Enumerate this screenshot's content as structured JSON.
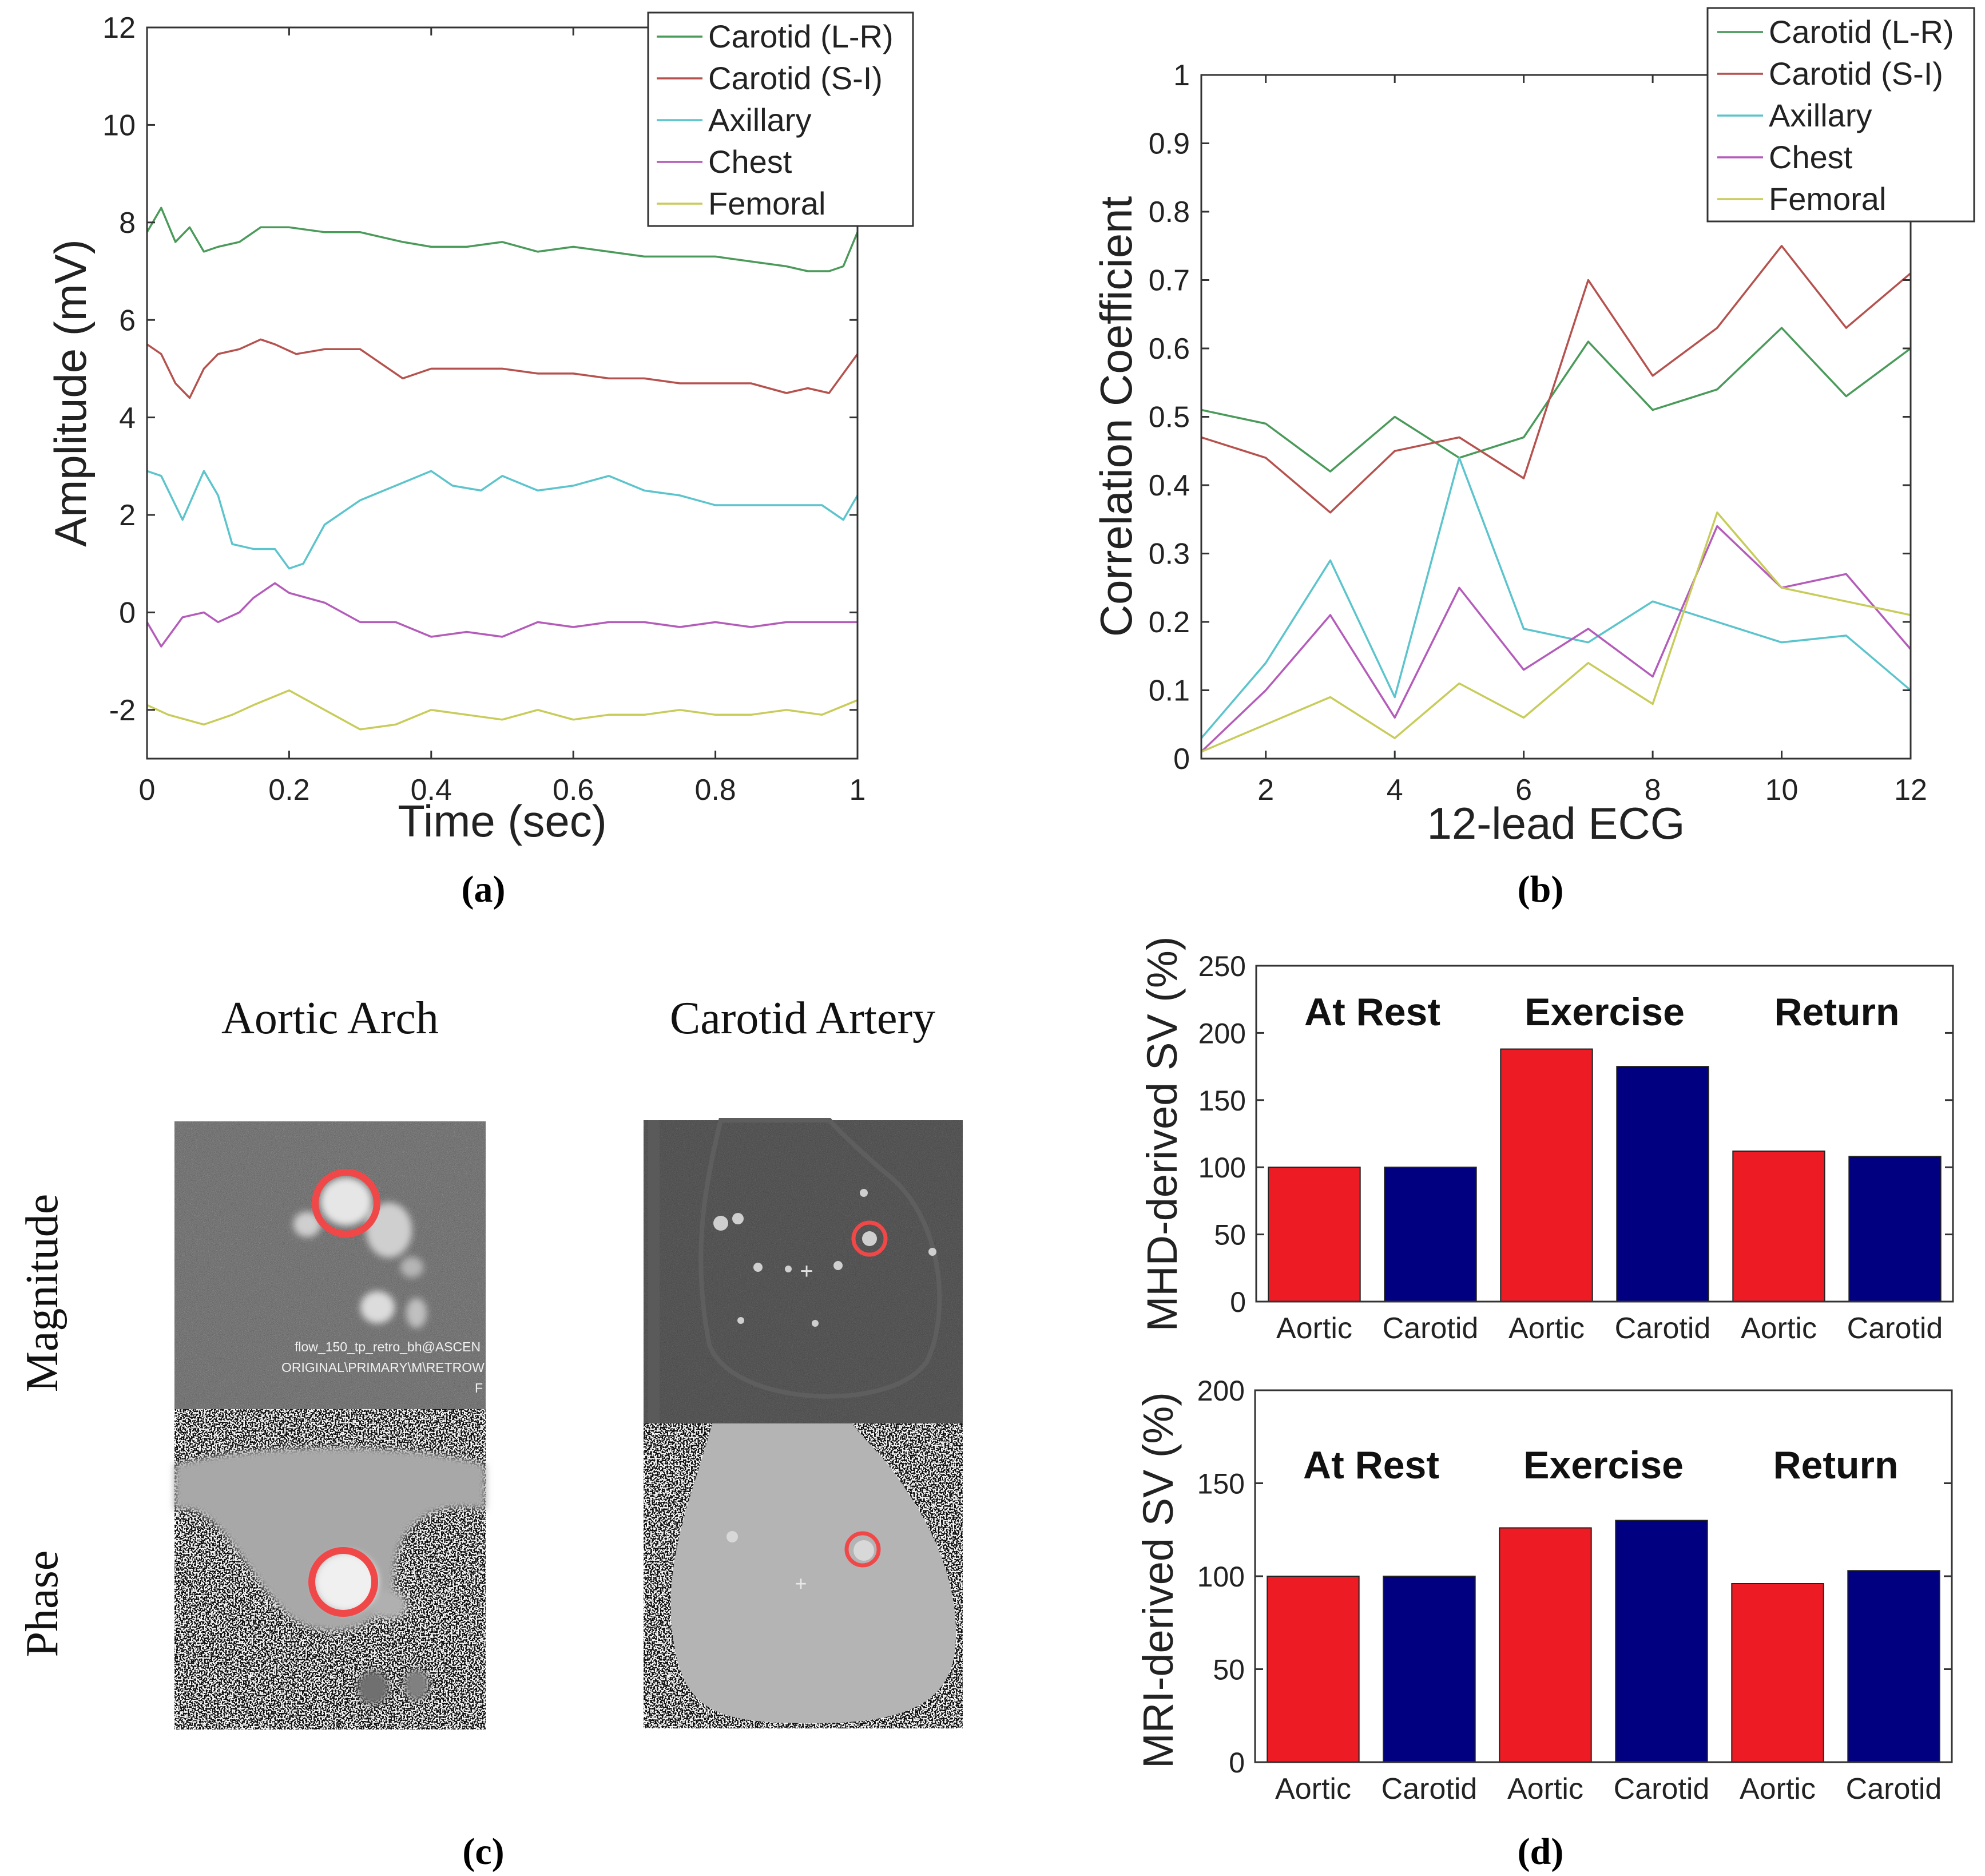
{
  "panel_labels": {
    "a": "(a)",
    "b": "(b)",
    "c": "(c)",
    "d": "(d)"
  },
  "colors": {
    "green": "#4a9a5a",
    "redline": "#b5524e",
    "cyan": "#5cc4cc",
    "magenta": "#b45cba",
    "yellow": "#c8cc5a",
    "bar_red": "#ed1c24",
    "bar_blue": "#000080",
    "circle": "#f04848"
  },
  "chart_data": [
    {
      "id": "a",
      "type": "line",
      "xlabel": "Time (sec)",
      "ylabel": "Amplitude (mV)",
      "xlim": [
        0,
        1
      ],
      "ylim": [
        -3,
        12
      ],
      "xticks": [
        0,
        0.2,
        0.4,
        0.6,
        0.8,
        1
      ],
      "xtick_labels": [
        "0",
        "0.2",
        "0.4",
        "0.6",
        "0.8",
        "1"
      ],
      "yticks": [
        -2,
        0,
        2,
        4,
        6,
        8,
        10,
        12
      ],
      "ytick_labels": [
        "-2",
        "0",
        "2",
        "4",
        "6",
        "8",
        "10",
        "12"
      ],
      "legend_position": "top-right",
      "series": [
        {
          "name": "Carotid (L-R)",
          "color": "#4a9a5a",
          "x": [
            0,
            0.02,
            0.04,
            0.06,
            0.08,
            0.1,
            0.13,
            0.16,
            0.2,
            0.25,
            0.3,
            0.33,
            0.36,
            0.4,
            0.45,
            0.5,
            0.55,
            0.6,
            0.65,
            0.7,
            0.75,
            0.8,
            0.85,
            0.9,
            0.93,
            0.96,
            0.98,
            1.0
          ],
          "y": [
            7.8,
            8.3,
            7.6,
            7.9,
            7.4,
            7.5,
            7.6,
            7.9,
            7.9,
            7.8,
            7.8,
            7.7,
            7.6,
            7.5,
            7.5,
            7.6,
            7.4,
            7.5,
            7.4,
            7.3,
            7.3,
            7.3,
            7.2,
            7.1,
            7.0,
            7.0,
            7.1,
            7.8
          ]
        },
        {
          "name": "Carotid (S-I)",
          "color": "#b5524e",
          "x": [
            0,
            0.02,
            0.04,
            0.06,
            0.08,
            0.1,
            0.13,
            0.16,
            0.18,
            0.21,
            0.25,
            0.3,
            0.33,
            0.36,
            0.4,
            0.45,
            0.5,
            0.55,
            0.6,
            0.65,
            0.7,
            0.75,
            0.8,
            0.85,
            0.9,
            0.93,
            0.96,
            1.0
          ],
          "y": [
            5.5,
            5.3,
            4.7,
            4.4,
            5.0,
            5.3,
            5.4,
            5.6,
            5.5,
            5.3,
            5.4,
            5.4,
            5.1,
            4.8,
            5.0,
            5.0,
            5.0,
            4.9,
            4.9,
            4.8,
            4.8,
            4.7,
            4.7,
            4.7,
            4.5,
            4.6,
            4.5,
            5.3
          ]
        },
        {
          "name": "Axillary",
          "color": "#5cc4cc",
          "x": [
            0,
            0.02,
            0.05,
            0.08,
            0.1,
            0.12,
            0.15,
            0.18,
            0.2,
            0.22,
            0.25,
            0.3,
            0.35,
            0.4,
            0.43,
            0.47,
            0.5,
            0.55,
            0.6,
            0.65,
            0.7,
            0.75,
            0.8,
            0.85,
            0.9,
            0.95,
            0.98,
            1.0
          ],
          "y": [
            2.9,
            2.8,
            1.9,
            2.9,
            2.4,
            1.4,
            1.3,
            1.3,
            0.9,
            1.0,
            1.8,
            2.3,
            2.6,
            2.9,
            2.6,
            2.5,
            2.8,
            2.5,
            2.6,
            2.8,
            2.5,
            2.4,
            2.2,
            2.2,
            2.2,
            2.2,
            1.9,
            2.4
          ]
        },
        {
          "name": "Chest",
          "color": "#b45cba",
          "x": [
            0,
            0.02,
            0.05,
            0.08,
            0.1,
            0.13,
            0.15,
            0.18,
            0.2,
            0.25,
            0.3,
            0.35,
            0.4,
            0.45,
            0.5,
            0.55,
            0.6,
            0.65,
            0.7,
            0.75,
            0.8,
            0.85,
            0.9,
            0.95,
            1.0
          ],
          "y": [
            -0.2,
            -0.7,
            -0.1,
            0.0,
            -0.2,
            0.0,
            0.3,
            0.6,
            0.4,
            0.2,
            -0.2,
            -0.2,
            -0.5,
            -0.4,
            -0.5,
            -0.2,
            -0.3,
            -0.2,
            -0.2,
            -0.3,
            -0.2,
            -0.3,
            -0.2,
            -0.2,
            -0.2
          ]
        },
        {
          "name": "Femoral",
          "color": "#c8cc5a",
          "x": [
            0,
            0.03,
            0.08,
            0.12,
            0.15,
            0.2,
            0.25,
            0.3,
            0.35,
            0.4,
            0.45,
            0.5,
            0.55,
            0.6,
            0.65,
            0.7,
            0.75,
            0.8,
            0.85,
            0.9,
            0.95,
            1.0
          ],
          "y": [
            -1.9,
            -2.1,
            -2.3,
            -2.1,
            -1.9,
            -1.6,
            -2.0,
            -2.4,
            -2.3,
            -2.0,
            -2.1,
            -2.2,
            -2.0,
            -2.2,
            -2.1,
            -2.1,
            -2.0,
            -2.1,
            -2.1,
            -2.0,
            -2.1,
            -1.8
          ]
        }
      ]
    },
    {
      "id": "b",
      "type": "line",
      "xlabel": "12-lead ECG",
      "ylabel": "Correlation Coefficient",
      "xlim": [
        1,
        12
      ],
      "ylim": [
        0,
        1
      ],
      "xticks": [
        2,
        4,
        6,
        8,
        10,
        12
      ],
      "xtick_labels": [
        "2",
        "4",
        "6",
        "8",
        "10",
        "12"
      ],
      "yticks": [
        0,
        0.1,
        0.2,
        0.3,
        0.4,
        0.5,
        0.6,
        0.7,
        0.8,
        0.9,
        1
      ],
      "ytick_labels": [
        "0",
        "0.1",
        "0.2",
        "0.3",
        "0.4",
        "0.5",
        "0.6",
        "0.7",
        "0.8",
        "0.9",
        "1"
      ],
      "legend_position": "top-right",
      "series": [
        {
          "name": "Carotid (L-R)",
          "color": "#4a9a5a",
          "x": [
            1,
            2,
            3,
            4,
            5,
            6,
            7,
            8,
            9,
            10,
            11,
            12
          ],
          "y": [
            0.51,
            0.49,
            0.42,
            0.5,
            0.44,
            0.47,
            0.61,
            0.51,
            0.54,
            0.63,
            0.53,
            0.6
          ]
        },
        {
          "name": "Carotid (S-I)",
          "color": "#b5524e",
          "x": [
            1,
            2,
            3,
            4,
            5,
            6,
            7,
            8,
            9,
            10,
            11,
            12
          ],
          "y": [
            0.47,
            0.44,
            0.36,
            0.45,
            0.47,
            0.41,
            0.7,
            0.56,
            0.63,
            0.75,
            0.63,
            0.71
          ]
        },
        {
          "name": "Axillary",
          "color": "#5cc4cc",
          "x": [
            1,
            2,
            3,
            4,
            5,
            6,
            7,
            8,
            9,
            10,
            11,
            12
          ],
          "y": [
            0.03,
            0.14,
            0.29,
            0.09,
            0.44,
            0.19,
            0.17,
            0.23,
            0.2,
            0.17,
            0.18,
            0.1
          ]
        },
        {
          "name": "Chest",
          "color": "#b45cba",
          "x": [
            1,
            2,
            3,
            4,
            5,
            6,
            7,
            8,
            9,
            10,
            11,
            12
          ],
          "y": [
            0.01,
            0.1,
            0.21,
            0.06,
            0.25,
            0.13,
            0.19,
            0.12,
            0.34,
            0.25,
            0.27,
            0.16
          ]
        },
        {
          "name": "Femoral",
          "color": "#c8cc5a",
          "x": [
            1,
            2,
            3,
            4,
            5,
            6,
            7,
            8,
            9,
            10,
            11,
            12
          ],
          "y": [
            0.01,
            0.05,
            0.09,
            0.03,
            0.11,
            0.06,
            0.14,
            0.08,
            0.36,
            0.25,
            0.23,
            0.21
          ]
        }
      ]
    },
    {
      "id": "d-top",
      "type": "bar",
      "ylabel": "MHD-derived SV (%)",
      "ylim": [
        0,
        250
      ],
      "yticks": [
        0,
        50,
        100,
        150,
        200,
        250
      ],
      "ytick_labels": [
        "0",
        "50",
        "100",
        "150",
        "200",
        "250"
      ],
      "categories": [
        "Aortic",
        "Carotid",
        "Aortic",
        "Carotid",
        "Aortic",
        "Carotid"
      ],
      "values": [
        100,
        100,
        188,
        175,
        112,
        108
      ],
      "group_labels": [
        "At Rest",
        "Exercise",
        "Return"
      ]
    },
    {
      "id": "d-bottom",
      "type": "bar",
      "ylabel": "MRI-derived SV (%)",
      "ylim": [
        0,
        200
      ],
      "yticks": [
        0,
        50,
        100,
        150,
        200
      ],
      "ytick_labels": [
        "0",
        "50",
        "100",
        "150",
        "200"
      ],
      "categories": [
        "Aortic",
        "Carotid",
        "Aortic",
        "Carotid",
        "Aortic",
        "Carotid"
      ],
      "values": [
        100,
        100,
        126,
        130,
        96,
        103
      ],
      "group_labels": [
        "At Rest",
        "Exercise",
        "Return"
      ]
    }
  ],
  "panel_c": {
    "col_titles": [
      "Aortic Arch",
      "Carotid Artery"
    ],
    "row_titles": [
      "Magnitude",
      "Phase"
    ],
    "overlay_text": [
      "flow_150_tp_retro_bh@ASCEN",
      "ORIGINAL\\PRIMARY\\M\\RETROW",
      "F"
    ]
  }
}
